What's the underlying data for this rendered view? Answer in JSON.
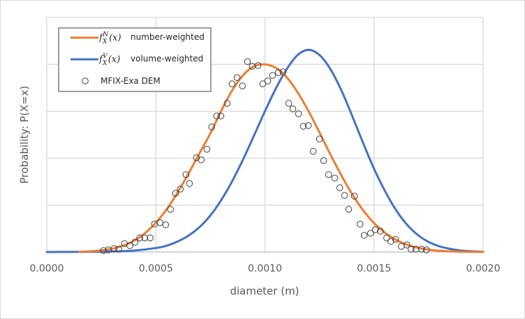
{
  "chart_data": {
    "type": "line",
    "title": "",
    "xlabel": "diameter (m)",
    "ylabel": "Probability: P(X=x)",
    "xlim": [
      0,
      0.002
    ],
    "ylim": [
      0,
      1.0
    ],
    "grid": true,
    "x_ticks": [
      0,
      0.0005,
      0.001,
      0.0015,
      0.002
    ],
    "x_tick_labels": [
      "0.0000",
      "0.0005",
      "0.0010",
      "0.0015",
      "0.0020"
    ],
    "y_gridlines": [
      0,
      0.2,
      0.4,
      0.6,
      0.8,
      1.0
    ],
    "legend_position": "top-left",
    "series": [
      {
        "name": "number-weighted",
        "label_math": "f_X^N(x)",
        "label_text": "number-weighted",
        "kind": "line",
        "color": "#ED7D31",
        "x": [
          0.00015,
          0.0002,
          0.00025,
          0.0003,
          0.00035,
          0.0004,
          0.00045,
          0.0005,
          0.00055,
          0.0006,
          0.00065,
          0.0007,
          0.00075,
          0.0008,
          0.00085,
          0.0009,
          0.00095,
          0.001,
          0.00105,
          0.0011,
          0.00115,
          0.0012,
          0.00125,
          0.0013,
          0.00135,
          0.0014,
          0.00145,
          0.0015,
          0.00155,
          0.0016,
          0.00165,
          0.0017,
          0.00175,
          0.0018,
          0.00185,
          0.0019,
          0.00195,
          0.002
        ],
        "y": [
          0.001,
          0.003,
          0.007,
          0.014,
          0.027,
          0.048,
          0.08,
          0.125,
          0.183,
          0.254,
          0.335,
          0.421,
          0.506,
          0.603,
          0.689,
          0.754,
          0.792,
          0.8,
          0.785,
          0.745,
          0.68,
          0.6,
          0.51,
          0.416,
          0.327,
          0.246,
          0.178,
          0.123,
          0.082,
          0.052,
          0.031,
          0.018,
          0.01,
          0.005,
          0.003,
          0.001,
          0.0005,
          0.0002
        ]
      },
      {
        "name": "volume-weighted",
        "label_math": "f_X^V(x)",
        "label_text": "volume-weighted",
        "kind": "line",
        "color": "#4472C4",
        "x": [
          0,
          0.0002,
          0.0003,
          0.0004,
          0.0005,
          0.00055,
          0.0006,
          0.00065,
          0.0007,
          0.00075,
          0.0008,
          0.00085,
          0.0009,
          0.00095,
          0.001,
          0.00105,
          0.0011,
          0.00115,
          0.0012,
          0.00125,
          0.0013,
          0.00135,
          0.0014,
          0.00145,
          0.0015,
          0.00155,
          0.0016,
          0.00165,
          0.0017,
          0.00175,
          0.0018,
          0.00185,
          0.0019,
          0.00195,
          0.002
        ],
        "y": [
          0,
          0.0005,
          0.002,
          0.006,
          0.017,
          0.027,
          0.045,
          0.07,
          0.106,
          0.156,
          0.222,
          0.302,
          0.395,
          0.497,
          0.6,
          0.697,
          0.78,
          0.84,
          0.862,
          0.84,
          0.78,
          0.69,
          0.58,
          0.465,
          0.355,
          0.26,
          0.18,
          0.118,
          0.073,
          0.043,
          0.024,
          0.013,
          0.006,
          0.003,
          0.001
        ]
      },
      {
        "name": "MFIX-Exa DEM",
        "label_text": "MFIX-Exa DEM",
        "kind": "scatter",
        "color": "#404040",
        "x": [
          0.00026,
          0.000282,
          0.000308,
          0.00033,
          0.000356,
          0.000381,
          0.000404,
          0.000426,
          0.000449,
          0.000474,
          0.000494,
          0.000519,
          0.000545,
          0.000567,
          0.00059,
          0.000612,
          0.000638,
          0.000654,
          0.000686,
          0.000708,
          0.000734,
          0.000756,
          0.000779,
          0.000798,
          0.000827,
          0.000849,
          0.000872,
          0.000897,
          0.00092,
          0.000942,
          0.000968,
          0.00099,
          0.001013,
          0.001035,
          0.001061,
          0.001083,
          0.001109,
          0.001128,
          0.001154,
          0.001199,
          0.001176,
          0.00125,
          0.001221,
          0.001292,
          0.001269,
          0.00132,
          0.001343,
          0.001365,
          0.001384,
          0.00141,
          0.001436,
          0.001455,
          0.001484,
          0.001506,
          0.001529,
          0.001558,
          0.001577,
          0.001599,
          0.001625,
          0.001651,
          0.00167,
          0.001692,
          0.001718,
          0.00174
        ],
        "y": [
          0.006,
          0.009,
          0.015,
          0.012,
          0.036,
          0.027,
          0.042,
          0.06,
          0.06,
          0.06,
          0.119,
          0.125,
          0.116,
          0.182,
          0.25,
          0.268,
          0.33,
          0.292,
          0.402,
          0.393,
          0.438,
          0.533,
          0.58,
          0.58,
          0.634,
          0.717,
          0.744,
          0.708,
          0.812,
          0.792,
          0.795,
          0.717,
          0.729,
          0.753,
          0.765,
          0.768,
          0.634,
          0.61,
          0.589,
          0.539,
          0.536,
          0.482,
          0.429,
          0.33,
          0.39,
          0.315,
          0.274,
          0.241,
          0.182,
          0.238,
          0.119,
          0.071,
          0.08,
          0.095,
          0.089,
          0.06,
          0.045,
          0.054,
          0.024,
          0.03,
          0.012,
          0.012,
          0.012,
          0.009
        ]
      }
    ]
  }
}
